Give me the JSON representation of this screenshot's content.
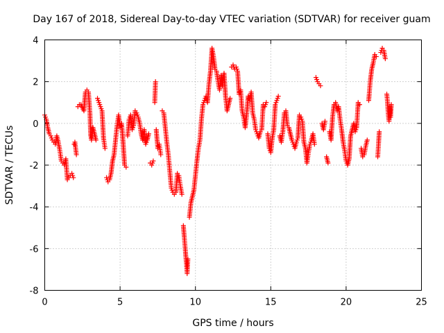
{
  "chart_data": {
    "type": "scatter",
    "title": "Day 167 of 2018, Sidereal Day-to-day VTEC variation (SDTVAR) for receiver guam",
    "xlabel": "GPS time / hours",
    "ylabel": "SDTVAR / TECUs",
    "xlim": [
      0,
      25
    ],
    "ylim": [
      -8,
      4
    ],
    "xticks": [
      "0",
      "5",
      "10",
      "15",
      "20",
      "25"
    ],
    "yticks": [
      "4",
      "2",
      "0",
      "-2",
      "-4",
      "-6",
      "-8"
    ],
    "grid": true,
    "marker": "+",
    "series_color": "#ff0000",
    "series": [
      {
        "name": "SDTVAR",
        "points": [
          [
            0.0,
            0.4
          ],
          [
            0.1,
            0.2
          ],
          [
            0.2,
            -0.2
          ],
          [
            0.3,
            -0.5
          ],
          [
            0.4,
            -0.6
          ],
          [
            0.5,
            -0.8
          ],
          [
            0.6,
            -0.9
          ],
          [
            0.7,
            -1.0
          ],
          [
            0.8,
            -0.6
          ],
          [
            0.9,
            -0.9
          ],
          [
            1.0,
            -1.3
          ],
          [
            1.1,
            -1.8
          ],
          [
            1.2,
            -1.9
          ],
          [
            1.3,
            -2.0
          ],
          [
            1.4,
            -1.7
          ],
          [
            1.5,
            -2.7
          ],
          [
            1.6,
            -2.6
          ],
          [
            1.7,
            -2.5
          ],
          [
            1.8,
            -2.4
          ],
          [
            1.9,
            -2.6
          ],
          [
            1.95,
            -1.0
          ],
          [
            2.0,
            -0.9
          ],
          [
            2.1,
            -1.5
          ],
          [
            2.2,
            0.8
          ],
          [
            2.3,
            0.9
          ],
          [
            2.4,
            0.9
          ],
          [
            2.6,
            0.6
          ],
          [
            2.7,
            1.5
          ],
          [
            2.8,
            1.6
          ],
          [
            2.9,
            1.5
          ],
          [
            3.0,
            0.5
          ],
          [
            3.05,
            -0.6
          ],
          [
            3.1,
            -0.8
          ],
          [
            3.2,
            -0.2
          ],
          [
            3.3,
            -0.5
          ],
          [
            3.4,
            -0.8
          ],
          [
            3.5,
            1.2
          ],
          [
            3.6,
            1.0
          ],
          [
            3.7,
            0.8
          ],
          [
            3.8,
            0.6
          ],
          [
            3.9,
            -0.7
          ],
          [
            4.0,
            -1.2
          ],
          [
            4.1,
            -2.6
          ],
          [
            4.2,
            -2.8
          ],
          [
            4.3,
            -2.7
          ],
          [
            4.4,
            -2.4
          ],
          [
            4.5,
            -1.8
          ],
          [
            4.6,
            -1.5
          ],
          [
            4.7,
            -0.8
          ],
          [
            4.8,
            -0.1
          ],
          [
            4.9,
            0.4
          ],
          [
            5.0,
            -0.2
          ],
          [
            5.1,
            0.0
          ],
          [
            5.2,
            -0.9
          ],
          [
            5.3,
            -2.0
          ],
          [
            5.4,
            -2.1
          ],
          [
            5.5,
            -0.6
          ],
          [
            5.6,
            0.2
          ],
          [
            5.7,
            0.4
          ],
          [
            5.8,
            -0.3
          ],
          [
            5.9,
            -0.1
          ],
          [
            6.0,
            0.6
          ],
          [
            6.1,
            0.5
          ],
          [
            6.2,
            0.3
          ],
          [
            6.3,
            0.0
          ],
          [
            6.4,
            -0.5
          ],
          [
            6.5,
            -0.8
          ],
          [
            6.6,
            -0.3
          ],
          [
            6.7,
            -1.0
          ],
          [
            6.8,
            -0.8
          ],
          [
            6.9,
            -0.5
          ],
          [
            7.0,
            -1.9
          ],
          [
            7.1,
            -2.0
          ],
          [
            7.2,
            -1.8
          ],
          [
            7.3,
            1.0
          ],
          [
            7.35,
            2.0
          ],
          [
            7.4,
            -0.3
          ],
          [
            7.5,
            -1.2
          ],
          [
            7.6,
            -1.0
          ],
          [
            7.7,
            -1.5
          ],
          [
            7.8,
            0.6
          ],
          [
            7.9,
            0.5
          ],
          [
            8.0,
            -0.2
          ],
          [
            8.1,
            -0.9
          ],
          [
            8.2,
            -1.5
          ],
          [
            8.3,
            -2.3
          ],
          [
            8.4,
            -3.1
          ],
          [
            8.5,
            -3.3
          ],
          [
            8.6,
            -3.4
          ],
          [
            8.7,
            -3.3
          ],
          [
            8.8,
            -2.4
          ],
          [
            8.9,
            -2.5
          ],
          [
            9.0,
            -3.0
          ],
          [
            9.1,
            -3.4
          ],
          [
            9.2,
            -4.9
          ],
          [
            9.3,
            -5.8
          ],
          [
            9.4,
            -6.7
          ],
          [
            9.45,
            -7.2
          ],
          [
            9.5,
            -6.5
          ],
          [
            9.6,
            -4.5
          ],
          [
            9.7,
            -3.8
          ],
          [
            9.8,
            -3.5
          ],
          [
            9.9,
            -3.2
          ],
          [
            10.0,
            -2.5
          ],
          [
            10.1,
            -1.8
          ],
          [
            10.2,
            -1.2
          ],
          [
            10.3,
            -0.8
          ],
          [
            10.4,
            0.2
          ],
          [
            10.5,
            0.9
          ],
          [
            10.6,
            1.1
          ],
          [
            10.7,
            1.3
          ],
          [
            10.8,
            1.0
          ],
          [
            10.9,
            1.9
          ],
          [
            11.0,
            2.5
          ],
          [
            11.1,
            3.6
          ],
          [
            11.2,
            3.2
          ],
          [
            11.3,
            2.6
          ],
          [
            11.4,
            2.5
          ],
          [
            11.5,
            2.0
          ],
          [
            11.6,
            1.6
          ],
          [
            11.7,
            2.3
          ],
          [
            11.8,
            1.8
          ],
          [
            11.9,
            2.4
          ],
          [
            12.0,
            1.3
          ],
          [
            12.1,
            0.6
          ],
          [
            12.2,
            0.9
          ],
          [
            12.3,
            1.2
          ],
          [
            12.4,
            2.7
          ],
          [
            12.5,
            2.8
          ],
          [
            12.6,
            2.6
          ],
          [
            12.7,
            2.7
          ],
          [
            12.8,
            2.5
          ],
          [
            12.9,
            1.4
          ],
          [
            13.0,
            1.6
          ],
          [
            13.1,
            0.6
          ],
          [
            13.2,
            0.3
          ],
          [
            13.3,
            -0.2
          ],
          [
            13.4,
            0.4
          ],
          [
            13.5,
            1.3
          ],
          [
            13.6,
            1.1
          ],
          [
            13.7,
            1.5
          ],
          [
            13.8,
            0.5
          ],
          [
            13.9,
            0.2
          ],
          [
            14.0,
            -0.3
          ],
          [
            14.1,
            -0.5
          ],
          [
            14.2,
            -0.7
          ],
          [
            14.3,
            -0.4
          ],
          [
            14.4,
            -0.3
          ],
          [
            14.5,
            0.9
          ],
          [
            14.6,
            0.8
          ],
          [
            14.7,
            1.0
          ],
          [
            14.8,
            -0.5
          ],
          [
            14.9,
            -1.2
          ],
          [
            15.0,
            -1.4
          ],
          [
            15.1,
            -0.7
          ],
          [
            15.2,
            -0.3
          ],
          [
            15.3,
            0.9
          ],
          [
            15.4,
            1.1
          ],
          [
            15.5,
            1.3
          ],
          [
            15.6,
            -0.6
          ],
          [
            15.7,
            -0.9
          ],
          [
            15.8,
            -0.4
          ],
          [
            15.9,
            0.5
          ],
          [
            16.0,
            0.6
          ],
          [
            16.1,
            -0.1
          ],
          [
            16.2,
            -0.2
          ],
          [
            16.3,
            -0.5
          ],
          [
            16.4,
            -0.8
          ],
          [
            16.5,
            -1.0
          ],
          [
            16.6,
            -1.2
          ],
          [
            16.7,
            -0.9
          ],
          [
            16.8,
            -0.7
          ],
          [
            16.9,
            0.4
          ],
          [
            17.0,
            0.3
          ],
          [
            17.1,
            0.1
          ],
          [
            17.2,
            -0.9
          ],
          [
            17.3,
            -1.2
          ],
          [
            17.4,
            -1.9
          ],
          [
            17.5,
            -1.4
          ],
          [
            17.6,
            -1.0
          ],
          [
            17.7,
            -0.8
          ],
          [
            17.8,
            -0.5
          ],
          [
            17.9,
            -1.0
          ],
          [
            18.0,
            2.2
          ],
          [
            18.1,
            2.0
          ],
          [
            18.2,
            1.9
          ],
          [
            18.3,
            1.8
          ],
          [
            18.4,
            0.0
          ],
          [
            18.5,
            -0.3
          ],
          [
            18.6,
            0.1
          ],
          [
            18.7,
            -1.6
          ],
          [
            18.8,
            -1.9
          ],
          [
            18.9,
            -0.4
          ],
          [
            19.0,
            -0.8
          ],
          [
            19.1,
            0.3
          ],
          [
            19.2,
            0.9
          ],
          [
            19.3,
            1.0
          ],
          [
            19.4,
            0.6
          ],
          [
            19.5,
            0.8
          ],
          [
            19.6,
            0.2
          ],
          [
            19.7,
            -0.3
          ],
          [
            19.8,
            -0.9
          ],
          [
            19.9,
            -1.3
          ],
          [
            20.0,
            -1.8
          ],
          [
            20.1,
            -2.0
          ],
          [
            20.2,
            -1.7
          ],
          [
            20.3,
            -0.6
          ],
          [
            20.4,
            -0.3
          ],
          [
            20.5,
            0.0
          ],
          [
            20.6,
            -0.4
          ],
          [
            20.7,
            -0.2
          ],
          [
            20.8,
            1.0
          ],
          [
            20.9,
            0.9
          ],
          [
            21.0,
            -1.2
          ],
          [
            21.1,
            -1.6
          ],
          [
            21.2,
            -1.5
          ],
          [
            21.3,
            -1.1
          ],
          [
            21.4,
            -0.8
          ],
          [
            21.5,
            1.1
          ],
          [
            21.6,
            2.0
          ],
          [
            21.7,
            2.6
          ],
          [
            21.8,
            2.9
          ],
          [
            21.9,
            3.3
          ],
          [
            22.0,
            3.2
          ],
          [
            22.1,
            -1.6
          ],
          [
            22.15,
            -1.0
          ],
          [
            22.2,
            -0.4
          ],
          [
            22.3,
            3.4
          ],
          [
            22.4,
            3.6
          ],
          [
            22.5,
            3.5
          ],
          [
            22.6,
            3.1
          ],
          [
            22.7,
            1.4
          ],
          [
            22.75,
            1.0
          ],
          [
            22.8,
            0.4
          ],
          [
            22.85,
            0.1
          ],
          [
            22.9,
            0.8
          ],
          [
            22.95,
            0.3
          ],
          [
            23.0,
            0.9
          ]
        ]
      }
    ]
  }
}
